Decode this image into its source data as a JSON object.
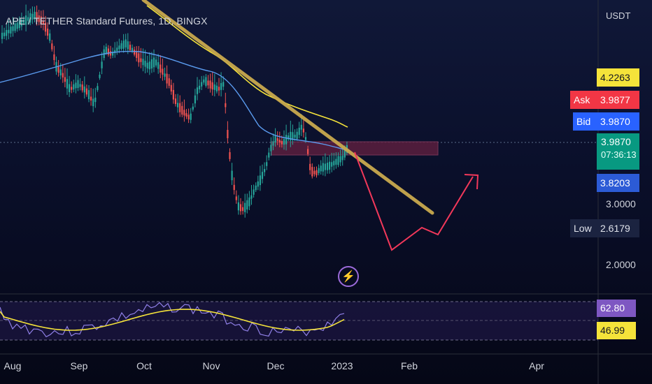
{
  "header": {
    "title": "APE / TETHER Standard Futures, 1D, BINGX",
    "currency": "USDT"
  },
  "price_scale": {
    "ticks": [
      "3.0000",
      "2.0000"
    ]
  },
  "tags": {
    "ma_value": "4.2263",
    "ask_label": "Ask",
    "ask_value": "3.9877",
    "bid_label": "Bid",
    "bid_value": "3.9870",
    "last_price": "3.9870",
    "countdown": "07:36:13",
    "ma2_value": "3.8203",
    "low_label": "Low",
    "low_value": "2.6179",
    "rsi_value": "62.80",
    "rsi_ma_value": "46.99"
  },
  "time_axis": {
    "ticks": [
      "Aug",
      "Sep",
      "Oct",
      "Nov",
      "Dec",
      "2023",
      "Feb",
      "Apr"
    ]
  },
  "colors": {
    "up": "#26a69a",
    "down": "#ef5350",
    "ma_yellow": "#f5e33a",
    "ma_blue": "#5b9cf0",
    "trendline": "#c9a94e",
    "projection": "#f2385a",
    "rsi": "#8f7fe6",
    "zone": "#5a1f3e"
  },
  "chart_data": [
    {
      "type": "line",
      "title": "",
      "price_scale_type": "log",
      "y_ticks": [
        2.0,
        3.0
      ],
      "x_ticks": [
        "Aug",
        "Sep",
        "Oct",
        "Nov",
        "Dec",
        "2023",
        "Feb",
        "Apr"
      ],
      "series": [
        {
          "name": "",
          "kind": "price",
          "points": [
            [
              "Aug",
              6.5
            ],
            [
              "Aug",
              5.6
            ],
            [
              "Sep",
              4.9
            ],
            [
              "Sep",
              5.4
            ],
            [
              "Oct",
              5.6
            ],
            [
              "Oct",
              4.9
            ],
            [
              "Oct",
              4.6
            ],
            [
              "Nov",
              4.9
            ],
            [
              "Nov",
              3.5
            ],
            [
              "Nov",
              2.75
            ],
            [
              "Nov",
              3.3
            ],
            [
              "Dec",
              4.0
            ],
            [
              "Dec",
              4.15
            ],
            [
              "Dec",
              3.5
            ],
            [
              "2023",
              3.7
            ],
            [
              "2023",
              3.987
            ]
          ]
        }
      ],
      "markers": {
        "last": 3.987,
        "ask": 3.9877,
        "bid": 3.987,
        "ma1": 4.2263,
        "ma2": 3.8203,
        "low": 2.6179
      },
      "annotations": [
        "descending trendline",
        "resistance zone around 3.9–4.05",
        "projected path down toward ~2.3 then up"
      ]
    },
    {
      "type": "line",
      "title": "",
      "indicator": "RSI",
      "series": [
        {
          "name": "",
          "last": 62.8
        },
        {
          "name": "",
          "last": 46.99
        }
      ]
    }
  ]
}
